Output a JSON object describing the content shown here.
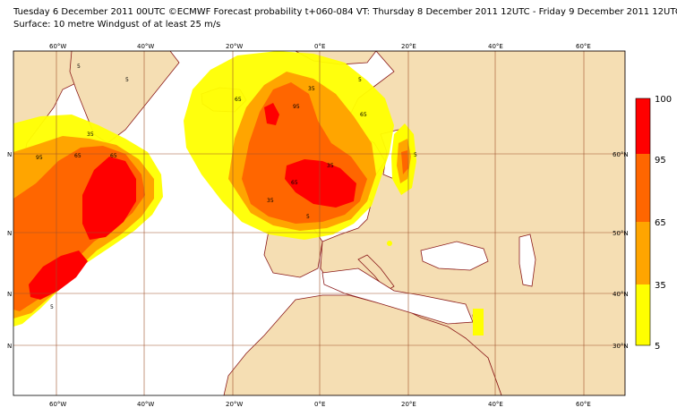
{
  "header": {
    "line1": "Tuesday 6 December 2011 00UTC ©ECMWF Forecast probability t+060-084 VT: Thursday 8 December 2011 12UTC - Friday 9 December 2011 12UTC",
    "line2": "Surface: 10 metre Windgust of at least 25 m/s"
  },
  "colors": {
    "ocean": "#ffffff",
    "land": "#f5deb3",
    "coast": "#8b1a1a",
    "grid": "#a0522d",
    "band_5_35": "#ffff00",
    "band_35_65": "#ffa500",
    "band_65_95": "#ff6600",
    "band_95_100": "#ff0000"
  },
  "axes": {
    "lon_labels": [
      "60°W",
      "40°W",
      "20°W",
      "0°E",
      "20°E",
      "40°E",
      "60°E"
    ],
    "lat_labels_left": [
      "N",
      "N",
      "N",
      "N"
    ],
    "lat_labels_right": [
      "60°N",
      "50°N",
      "40°N",
      "30°N"
    ]
  },
  "legend": {
    "levels": [
      "100",
      "95",
      "65",
      "35",
      "5"
    ],
    "colors": [
      "#ff0000",
      "#ff6600",
      "#ffa500",
      "#ffff00"
    ]
  },
  "contour_labels": [
    "5",
    "5",
    "35",
    "65",
    "65",
    "95",
    "5",
    "5",
    "35",
    "65",
    "95",
    "65",
    "35",
    "5",
    "5",
    "35",
    "65"
  ]
}
